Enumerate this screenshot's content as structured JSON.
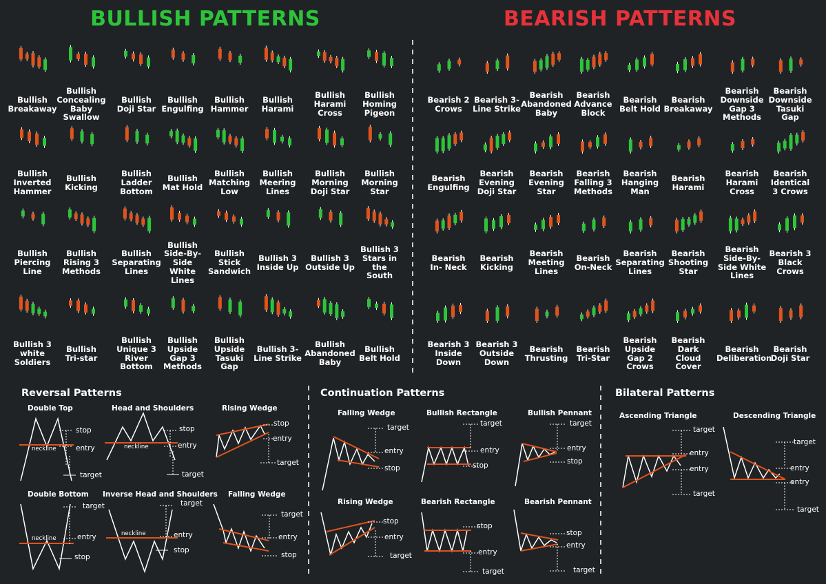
{
  "titles": {
    "bullish": "BULLISH PATTERNS",
    "bearish": "BEARISH PATTERNS",
    "bullish_color": "#2ec43a",
    "bearish_color": "#e8323a"
  },
  "colors": {
    "up": "#2ec43a",
    "down": "#e0541c",
    "line": "#ffffff",
    "accent": "#e0541c"
  },
  "bullish": [
    [
      "Bullish",
      "Breakaway"
    ],
    [
      "Bullish",
      "Concealing",
      "Baby",
      "Swallow"
    ],
    [
      "Bullish",
      "Doji Star"
    ],
    [
      "Bullish",
      "Engulfing"
    ],
    [
      "Bullish",
      "Hammer"
    ],
    [
      "Bullish",
      "Harami"
    ],
    [
      "Bullish",
      "Harami",
      "Cross"
    ],
    [
      "Bullish",
      "Homing",
      "Pigeon"
    ],
    [
      "Bullish",
      "Inverted",
      "Hammer"
    ],
    [
      "Bullish",
      "Kicking"
    ],
    [
      "Bullish",
      "Ladder",
      "Bottom"
    ],
    [
      "Bullish",
      "Mat Hold"
    ],
    [
      "Bullish",
      "Matching",
      "Low"
    ],
    [
      "Bullish",
      "Meering",
      "Lines"
    ],
    [
      "Bullish",
      "Morning",
      "Doji Star"
    ],
    [
      "Bullish",
      "Morning",
      "Star"
    ],
    [
      "Bullish",
      "Piercing",
      "Line"
    ],
    [
      "Bullish",
      "Rising 3",
      "Methods"
    ],
    [
      "Bullish",
      "Separating",
      "Lines"
    ],
    [
      "Bullish",
      "Side-By-",
      "Side",
      "White",
      "Lines"
    ],
    [
      "Bullish",
      "Stick",
      "Sandwich"
    ],
    [
      "Bullish 3",
      "Inside Up"
    ],
    [
      "Bullish 3",
      "Outside Up"
    ],
    [
      "Bullish 3",
      "Stars in",
      "the",
      "South"
    ],
    [
      "Bullish 3",
      "white",
      "Soldiers"
    ],
    [
      "Bullish",
      "Tri-star"
    ],
    [
      "Bullish",
      "Unique 3",
      "River",
      "Bottom"
    ],
    [
      "Bullish",
      "Upside",
      "Gap 3",
      "Methods"
    ],
    [
      "Bullish",
      "Upside",
      "Tasuki",
      "Gap"
    ],
    [
      "Bullish 3-",
      "Line Strike"
    ],
    [
      "Bullish",
      "Abandoned",
      "Baby"
    ],
    [
      "Bullish",
      "Belt Hold"
    ]
  ],
  "bearish": [
    [
      "Bearish 2",
      "Crows"
    ],
    [
      "Bearish 3-",
      "Line Strike"
    ],
    [
      "Bearish",
      "Abandoned",
      "Baby"
    ],
    [
      "Bearish",
      "Advance",
      "Block"
    ],
    [
      "Bearish",
      "Belt Hold"
    ],
    [
      "Bearish",
      "Breakaway"
    ],
    [
      "Bearish",
      "Downside",
      "Gap 3",
      "Methods"
    ],
    [
      "Bearish",
      "Downside",
      "Tasuki",
      "Gap"
    ],
    [
      "Bearish",
      "Engulfing"
    ],
    [
      "Bearish",
      "Evening",
      "Doji Star"
    ],
    [
      "Bearish",
      "Evening",
      "Star"
    ],
    [
      "Bearish",
      "Falling 3",
      "Methods"
    ],
    [
      "Bearish",
      "Hanging",
      "Man"
    ],
    [
      "Bearish",
      "Harami"
    ],
    [
      "Bearish",
      "Harami",
      "Cross"
    ],
    [
      "Bearish",
      "Identical",
      "3 Crows"
    ],
    [
      "Bearish",
      "In- Neck"
    ],
    [
      "Bearish",
      "Kicking"
    ],
    [
      "Bearish",
      "Meeting",
      "Lines"
    ],
    [
      "Bearish",
      "On-Neck"
    ],
    [
      "Bearish",
      "Separating",
      "Lines"
    ],
    [
      "Bearish",
      "Shooting",
      "Star"
    ],
    [
      "Bearish",
      "Side-By-",
      "Side White",
      "Lines"
    ],
    [
      "Bearish 3",
      "Black",
      "Crows"
    ],
    [
      "Bearish 3",
      "Inside",
      "Down"
    ],
    [
      "Bearish 3",
      "Outside",
      "Down"
    ],
    [
      "Bearish",
      "Thrusting"
    ],
    [
      "Bearish",
      "Tri-Star"
    ],
    [
      "Bearish",
      "Upside",
      "Gap 2",
      "Crows"
    ],
    [
      "Bearish",
      "Dark",
      "Cloud",
      "Cover"
    ],
    [
      "Bearish",
      "Deliberation"
    ],
    [
      "Bearish",
      "Doji Star"
    ]
  ],
  "sections": {
    "reversal": {
      "title": "Reversal Patterns",
      "diagrams": [
        {
          "title": "Double Top",
          "neckline": "neckline",
          "labels": [
            "stop",
            "entry",
            "target"
          ]
        },
        {
          "title": "Head and Shoulders",
          "neckline": "neckline",
          "labels": [
            "stop",
            "entry",
            "target"
          ]
        },
        {
          "title": "Rising Wedge",
          "labels": [
            "stop",
            "entry",
            "target"
          ]
        },
        {
          "title": "Double Bottom",
          "neckline": "neckline",
          "labels": [
            "target",
            "entry",
            "stop"
          ]
        },
        {
          "title": "Inverse Head and Shoulders",
          "neckline": "neckline",
          "labels": [
            "target",
            "entry",
            "stop"
          ]
        },
        {
          "title": "Falling Wedge",
          "labels": [
            "target",
            "entry",
            "stop"
          ]
        }
      ]
    },
    "continuation": {
      "title": "Continuation Patterns",
      "diagrams": [
        {
          "title": "Falling Wedge",
          "labels": [
            "target",
            "entry",
            "stop"
          ]
        },
        {
          "title": "Bullish Rectangle",
          "labels": [
            "target",
            "entry",
            "stop"
          ]
        },
        {
          "title": "Bullish Pennant",
          "labels": [
            "target",
            "entry",
            "stop"
          ]
        },
        {
          "title": "Rising Wedge",
          "labels": [
            "stop",
            "entry",
            "target"
          ]
        },
        {
          "title": "Bearish Rectangle",
          "labels": [
            "stop",
            "entry",
            "target"
          ]
        },
        {
          "title": "Bearish Pennant",
          "labels": [
            "stop",
            "entry",
            "target"
          ]
        }
      ]
    },
    "bilateral": {
      "title": "Bilateral Patterns",
      "diagrams": [
        {
          "title": "Ascending Triangle",
          "labels": [
            "target",
            "entry",
            "entry",
            "target"
          ]
        },
        {
          "title": "Descending Triangle",
          "labels": [
            "target",
            "entry",
            "entry",
            "target"
          ]
        }
      ]
    }
  }
}
